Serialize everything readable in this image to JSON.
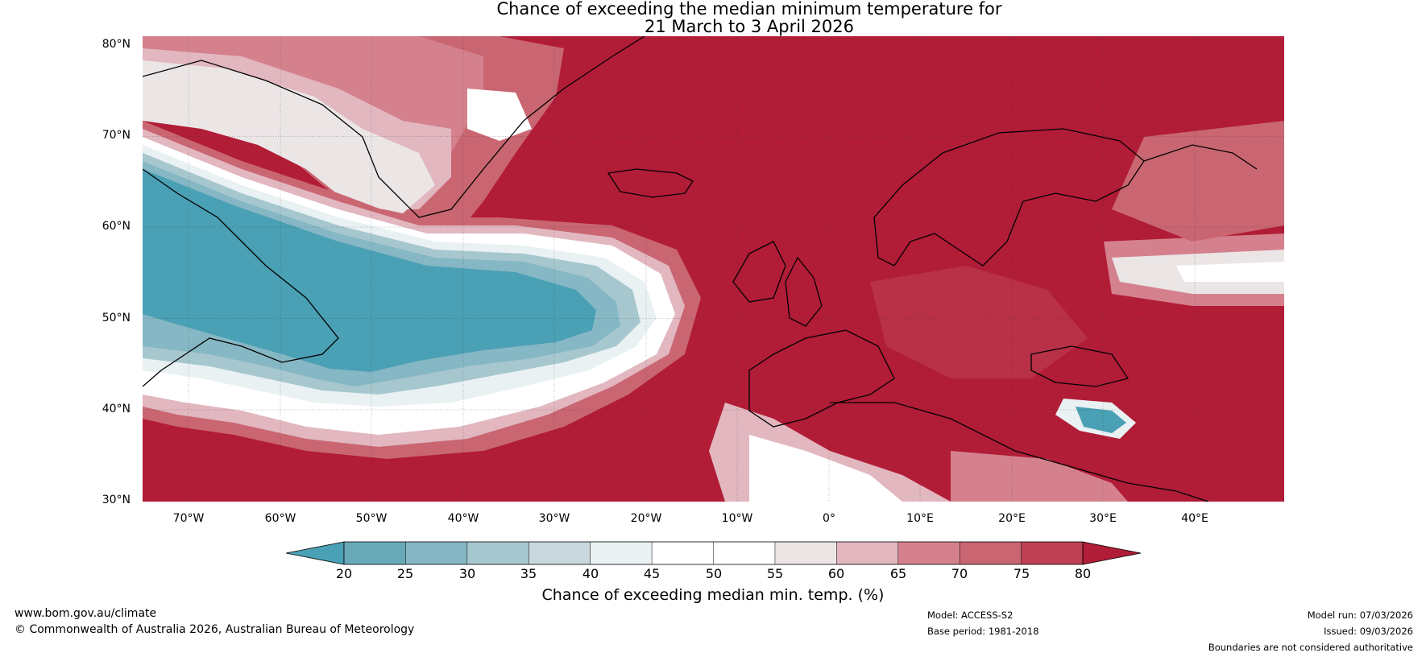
{
  "title": {
    "line1": "Chance of exceeding the median minimum temperature for",
    "line2": "21 March to 3 April 2026"
  },
  "axes": {
    "lat_labels": [
      "80°N",
      "70°N",
      "60°N",
      "50°N",
      "40°N",
      "30°N"
    ],
    "lon_labels": [
      "70°W",
      "60°W",
      "50°W",
      "40°W",
      "30°W",
      "20°W",
      "10°W",
      "0°",
      "10°E",
      "20°E",
      "30°E",
      "40°E"
    ]
  },
  "colorbar": {
    "ticks": [
      "20",
      "25",
      "30",
      "35",
      "40",
      "45",
      "50",
      "55",
      "60",
      "65",
      "70",
      "75",
      "80"
    ],
    "colors": [
      "#4aa0b4",
      "#69aab9",
      "#86b7c4",
      "#a7c7cf",
      "#c9d8dc",
      "#e9f1f3",
      "#ffffff",
      "#ffffff",
      "#ebe5e6",
      "#e2b7bf",
      "#d4818d",
      "#c96672",
      "#bd3f51",
      "#b11c37"
    ],
    "label": "Chance of exceeding median min. temp. (%)"
  },
  "footer": {
    "website": "www.bom.gov.au/climate",
    "copyright": "© Commonwealth of Australia 2026, Australian Bureau of Meteorology",
    "model": "Model: ACCESS-S2",
    "base_period": "Base period: 1981-2018",
    "model_run": "Model run: 07/03/2026",
    "issued": "Issued: 09/03/2026",
    "disclaimer": "Boundaries are not considered authoritative"
  }
}
